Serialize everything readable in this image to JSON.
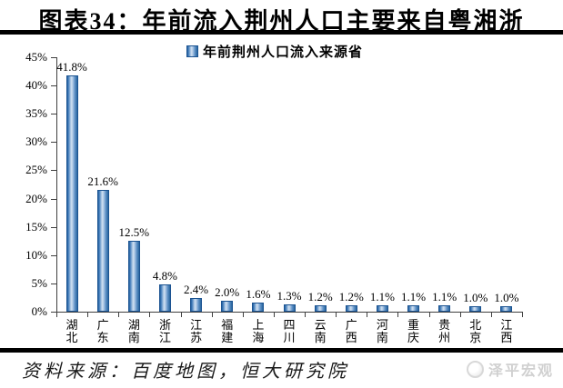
{
  "title": "图表34：年前流入荆州人口主要来自粤湘浙",
  "source": "资料来源：百度地图，恒大研究院",
  "logo": "泽平宏观",
  "colors": {
    "bar_edge": "#1B5391",
    "bar_mid": "#CFE0F1",
    "axis": "#3F3F3F",
    "rule": "#000000",
    "watermark_gray": "#D0D0D0"
  },
  "chart_data": {
    "type": "bar",
    "title": "年前荆州人口流入来源省",
    "categories": [
      "湖北",
      "广东",
      "湖南",
      "浙江",
      "江苏",
      "福建",
      "上海",
      "四川",
      "云南",
      "广西",
      "河南",
      "重庆",
      "贵州",
      "北京",
      "江西"
    ],
    "values": [
      41.8,
      21.6,
      12.5,
      4.8,
      2.4,
      2.0,
      1.6,
      1.3,
      1.2,
      1.2,
      1.1,
      1.1,
      1.1,
      1.0,
      1.0
    ],
    "bar_labels": [
      "41.8%",
      "21.6%",
      "12.5%",
      "4.8%",
      "2.4%",
      "2.0%",
      "1.6%",
      "1.3%",
      "1.2%",
      "1.2%",
      "1.1%",
      "1.1%",
      "1.1%",
      "1.0%",
      "1.0%"
    ],
    "xlabel": "",
    "ylabel": "",
    "ylim": [
      0,
      45
    ],
    "ytick_step": 5,
    "ytick_labels": [
      "0%",
      "5%",
      "10%",
      "15%",
      "20%",
      "25%",
      "30%",
      "35%",
      "40%",
      "45%"
    ],
    "legend_position": "top-center",
    "grid": false
  }
}
